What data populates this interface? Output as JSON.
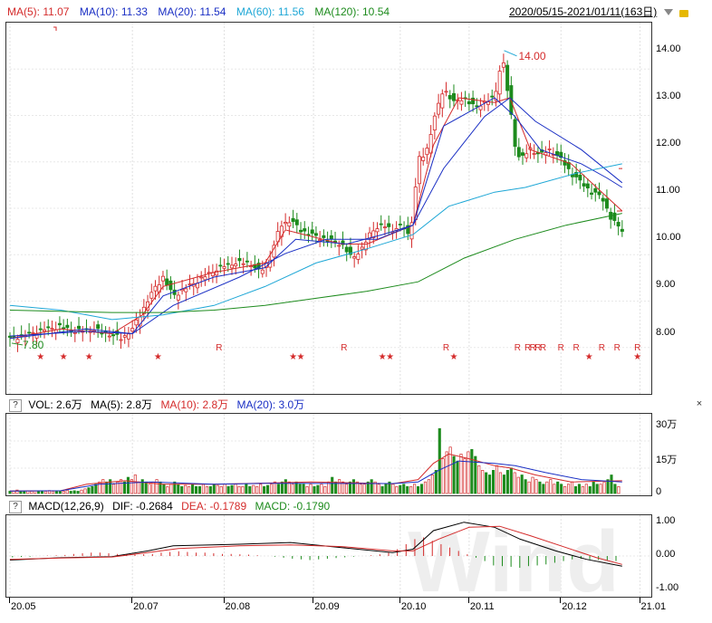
{
  "header": {
    "ma_labels": [
      {
        "text": "MA(5): 11.07",
        "color": "#d42b2b"
      },
      {
        "text": "MA(10): 11.33",
        "color": "#1a2fc4"
      },
      {
        "text": "MA(20): 11.54",
        "color": "#1a2fc4"
      },
      {
        "text": "MA(60): 11.56",
        "color": "#1ea7d6"
      },
      {
        "text": "MA(120): 10.54",
        "color": "#1d8b1d"
      }
    ],
    "date_range": "2020/05/15-2021/01/11(163日)"
  },
  "vol_header": {
    "q": "?",
    "labels": [
      {
        "text": "VOL: 2.6万",
        "color": "#000"
      },
      {
        "text": "MA(5): 2.8万",
        "color": "#000"
      },
      {
        "text": "MA(10): 2.8万",
        "color": "#d42b2b"
      },
      {
        "text": "MA(20): 3.0万",
        "color": "#1a2fc4"
      }
    ],
    "close": "×"
  },
  "macd_header": {
    "q": "?",
    "labels": [
      {
        "text": "MACD(12,26,9)",
        "color": "#000"
      },
      {
        "text": "DIF: -0.2684",
        "color": "#000"
      },
      {
        "text": "DEA: -0.1789",
        "color": "#d42b2b"
      },
      {
        "text": "MACD: -0.1790",
        "color": "#1d8b1d"
      }
    ]
  },
  "watermark": "Wind",
  "price_axis": {
    "ticks": [
      "14.00",
      "13.00",
      "12.00",
      "11.00",
      "10.00",
      "9.00",
      "8.00"
    ]
  },
  "vol_axis": {
    "ticks": [
      "30万",
      "15万",
      "0"
    ]
  },
  "macd_axis": {
    "ticks": [
      "1.00",
      "0.00",
      "-1.00"
    ]
  },
  "x_axis": {
    "ticks": [
      "20.05",
      "20.07",
      "20.08",
      "20.09",
      "20.10",
      "20.11",
      "20.12",
      "21.01"
    ]
  },
  "annotations": {
    "high": "14.00",
    "low": "7.80"
  },
  "markers": {
    "star": "★",
    "r": "R"
  },
  "chart_data": {
    "type": "candlestick",
    "price_ylim": [
      7.3,
      14.4
    ],
    "vol_ylim": [
      0,
      32
    ],
    "macd_ylim": [
      -1.1,
      1.1
    ],
    "close_path": [
      [
        0,
        7.9
      ],
      [
        8,
        8.0
      ],
      [
        14,
        8.1
      ],
      [
        20,
        8.15
      ],
      [
        26,
        8.05
      ],
      [
        32,
        8.1
      ],
      [
        38,
        8.0
      ],
      [
        44,
        7.9
      ],
      [
        48,
        8.1
      ],
      [
        52,
        8.5
      ],
      [
        56,
        8.9
      ],
      [
        60,
        9.2
      ],
      [
        64,
        8.8
      ],
      [
        70,
        9.0
      ],
      [
        76,
        9.2
      ],
      [
        82,
        9.4
      ],
      [
        88,
        9.5
      ],
      [
        94,
        9.5
      ],
      [
        98,
        9.3
      ],
      [
        102,
        9.6
      ],
      [
        106,
        10.3
      ],
      [
        110,
        10.4
      ],
      [
        114,
        10.2
      ],
      [
        118,
        10.1
      ],
      [
        124,
        10.0
      ],
      [
        130,
        9.9
      ],
      [
        134,
        9.6
      ],
      [
        138,
        9.8
      ],
      [
        142,
        10.2
      ],
      [
        146,
        10.3
      ],
      [
        150,
        10.2
      ],
      [
        154,
        10.3
      ],
      [
        156,
        10.1
      ],
      [
        158,
        10.5
      ],
      [
        160,
        11.7
      ],
      [
        163,
        11.8
      ],
      [
        166,
        12.5
      ],
      [
        170,
        13.2
      ],
      [
        174,
        12.9
      ],
      [
        178,
        13.0
      ],
      [
        182,
        12.8
      ],
      [
        186,
        12.9
      ],
      [
        190,
        13.0
      ],
      [
        193,
        13.9
      ],
      [
        196,
        12.8
      ],
      [
        198,
        12.0
      ],
      [
        200,
        11.7
      ],
      [
        204,
        11.9
      ],
      [
        208,
        11.8
      ],
      [
        212,
        11.9
      ],
      [
        216,
        11.7
      ],
      [
        220,
        11.4
      ],
      [
        224,
        11.2
      ],
      [
        228,
        11.0
      ],
      [
        232,
        10.9
      ],
      [
        236,
        10.4
      ],
      [
        240,
        10.2
      ]
    ],
    "ma_series": [
      {
        "label": "MA(5)",
        "color": "#d42b2b",
        "points": [
          [
            0,
            7.9
          ],
          [
            20,
            8.1
          ],
          [
            40,
            8.0
          ],
          [
            52,
            8.4
          ],
          [
            60,
            9.0
          ],
          [
            80,
            9.3
          ],
          [
            100,
            9.5
          ],
          [
            108,
            10.2
          ],
          [
            130,
            9.9
          ],
          [
            140,
            9.9
          ],
          [
            158,
            10.3
          ],
          [
            166,
            12.0
          ],
          [
            176,
            13.0
          ],
          [
            190,
            12.9
          ],
          [
            196,
            13.0
          ],
          [
            204,
            11.9
          ],
          [
            220,
            11.6
          ],
          [
            232,
            11.0
          ],
          [
            240,
            10.6
          ]
        ]
      },
      {
        "label": "MA(10)",
        "color": "#1a2fc4",
        "points": [
          [
            0,
            7.9
          ],
          [
            30,
            8.1
          ],
          [
            48,
            8.0
          ],
          [
            60,
            8.8
          ],
          [
            80,
            9.2
          ],
          [
            100,
            9.4
          ],
          [
            112,
            10.0
          ],
          [
            132,
            9.9
          ],
          [
            146,
            10.1
          ],
          [
            158,
            10.3
          ],
          [
            170,
            12.4
          ],
          [
            190,
            13.0
          ],
          [
            198,
            12.6
          ],
          [
            208,
            11.9
          ],
          [
            224,
            11.6
          ],
          [
            234,
            11.3
          ],
          [
            240,
            11.1
          ]
        ]
      },
      {
        "label": "MA(20)",
        "color": "#1a2fc4",
        "points": [
          [
            0,
            7.95
          ],
          [
            30,
            8.05
          ],
          [
            48,
            8.0
          ],
          [
            64,
            8.6
          ],
          [
            90,
            9.2
          ],
          [
            108,
            9.7
          ],
          [
            124,
            10.0
          ],
          [
            144,
            10.0
          ],
          [
            158,
            10.3
          ],
          [
            170,
            11.5
          ],
          [
            186,
            12.6
          ],
          [
            196,
            13.0
          ],
          [
            206,
            12.5
          ],
          [
            224,
            11.9
          ],
          [
            240,
            11.2
          ]
        ]
      },
      {
        "label": "MA(60)",
        "color": "#1ea7d6",
        "points": [
          [
            0,
            8.6
          ],
          [
            20,
            8.5
          ],
          [
            40,
            8.3
          ],
          [
            60,
            8.4
          ],
          [
            80,
            8.6
          ],
          [
            100,
            9.0
          ],
          [
            120,
            9.5
          ],
          [
            140,
            9.8
          ],
          [
            158,
            10.1
          ],
          [
            172,
            10.7
          ],
          [
            190,
            11.0
          ],
          [
            202,
            11.1
          ],
          [
            222,
            11.4
          ],
          [
            240,
            11.6
          ]
        ]
      },
      {
        "label": "MA(120)",
        "color": "#1d8b1d",
        "points": [
          [
            0,
            8.5
          ],
          [
            40,
            8.45
          ],
          [
            60,
            8.45
          ],
          [
            80,
            8.5
          ],
          [
            100,
            8.6
          ],
          [
            120,
            8.75
          ],
          [
            140,
            8.9
          ],
          [
            160,
            9.1
          ],
          [
            178,
            9.6
          ],
          [
            198,
            10.0
          ],
          [
            218,
            10.3
          ],
          [
            240,
            10.55
          ]
        ]
      }
    ],
    "volume": [
      1,
      1,
      1.5,
      1,
      1,
      1.2,
      1,
      1.1,
      1,
      1.2,
      1,
      1.3,
      1,
      1,
      1.2,
      1,
      1.4,
      1,
      1.2,
      1,
      1.5,
      2,
      2.5,
      3,
      4,
      5,
      6,
      5,
      6,
      4,
      5,
      6,
      5,
      7,
      6,
      8,
      5,
      6,
      5,
      4,
      5,
      6,
      5,
      4,
      3,
      4,
      5,
      4,
      3,
      3.5,
      3,
      4,
      3,
      3,
      4,
      3,
      3,
      4,
      3.5,
      3,
      4,
      3,
      3.5,
      4,
      3,
      3,
      4,
      3,
      3.5,
      3,
      4,
      3,
      3.5,
      4,
      5,
      4,
      5,
      6,
      5,
      4,
      5,
      4,
      4,
      3,
      4,
      3,
      3.5,
      4,
      3,
      5,
      7,
      5,
      6,
      5,
      4,
      5,
      6,
      5,
      4,
      4,
      5,
      6,
      5,
      4,
      3,
      4,
      5,
      4,
      3,
      3.5,
      4,
      3,
      3,
      4,
      3,
      4,
      5,
      6,
      8,
      10,
      28,
      15,
      18,
      20,
      16,
      14,
      17,
      15,
      18,
      19,
      16,
      12,
      10,
      9,
      8,
      10,
      12,
      9,
      8,
      10,
      11,
      9,
      7,
      8,
      6,
      5,
      7,
      6,
      5,
      4,
      5,
      6,
      4,
      5,
      4,
      3,
      4,
      5,
      3,
      4,
      3,
      4,
      3,
      5,
      4,
      4,
      5,
      6,
      8,
      4,
      3
    ],
    "vol_ma_series": [
      {
        "color": "#d42b2b",
        "points": [
          [
            0,
            1.1
          ],
          [
            20,
            1.2
          ],
          [
            30,
            4
          ],
          [
            45,
            5.5
          ],
          [
            60,
            4
          ],
          [
            80,
            4
          ],
          [
            100,
            4.5
          ],
          [
            118,
            5
          ],
          [
            150,
            4.2
          ],
          [
            160,
            6
          ],
          [
            166,
            13
          ],
          [
            172,
            17
          ],
          [
            180,
            15
          ],
          [
            190,
            12
          ],
          [
            196,
            11
          ],
          [
            206,
            8
          ],
          [
            220,
            5
          ],
          [
            240,
            5.5
          ]
        ]
      },
      {
        "color": "#1a2fc4",
        "points": [
          [
            0,
            1.1
          ],
          [
            20,
            1.2
          ],
          [
            35,
            4
          ],
          [
            55,
            5
          ],
          [
            80,
            4
          ],
          [
            100,
            4.4
          ],
          [
            150,
            4.3
          ],
          [
            160,
            5
          ],
          [
            168,
            10
          ],
          [
            176,
            14
          ],
          [
            190,
            13
          ],
          [
            198,
            12
          ],
          [
            210,
            9
          ],
          [
            224,
            6
          ],
          [
            240,
            5
          ]
        ]
      }
    ],
    "macd_dif": [
      [
        0,
        -0.12
      ],
      [
        20,
        -0.05
      ],
      [
        40,
        -0.02
      ],
      [
        54,
        0.15
      ],
      [
        64,
        0.3
      ],
      [
        90,
        0.35
      ],
      [
        110,
        0.4
      ],
      [
        130,
        0.25
      ],
      [
        150,
        0.1
      ],
      [
        158,
        0.2
      ],
      [
        166,
        0.75
      ],
      [
        178,
        1.0
      ],
      [
        190,
        0.85
      ],
      [
        200,
        0.5
      ],
      [
        214,
        0.15
      ],
      [
        226,
        -0.1
      ],
      [
        240,
        -0.3
      ]
    ],
    "macd_dea": [
      [
        0,
        -0.1
      ],
      [
        20,
        -0.06
      ],
      [
        40,
        -0.03
      ],
      [
        54,
        0.1
      ],
      [
        66,
        0.22
      ],
      [
        90,
        0.3
      ],
      [
        110,
        0.33
      ],
      [
        130,
        0.28
      ],
      [
        150,
        0.15
      ],
      [
        158,
        0.15
      ],
      [
        168,
        0.5
      ],
      [
        180,
        0.85
      ],
      [
        192,
        0.88
      ],
      [
        204,
        0.6
      ],
      [
        218,
        0.25
      ],
      [
        230,
        -0.05
      ],
      [
        240,
        -0.25
      ]
    ],
    "macd_hist": [
      -0.04,
      -0.03,
      -0.02,
      0,
      0.01,
      0.02,
      0.03,
      0.06,
      0.08,
      0.1,
      0.1,
      0.08,
      0.06,
      0.05,
      0.05,
      0.05,
      0.06,
      0.1,
      0.12,
      0.14,
      0.12,
      0.1,
      0.1,
      0.08,
      0.06,
      0.06,
      0.05,
      0.04,
      0.02,
      0,
      -0.02,
      -0.05,
      -0.08,
      -0.1,
      -0.12,
      -0.1,
      -0.08,
      -0.06,
      -0.04,
      -0.02,
      0,
      0.02,
      0.05,
      0.1,
      0.2,
      0.35,
      0.5,
      0.55,
      0.45,
      0.35,
      0.25,
      0.15,
      0.05,
      -0.05,
      -0.15,
      -0.28,
      -0.3,
      -0.32,
      -0.35,
      -0.3,
      -0.28,
      -0.25,
      -0.2,
      -0.15,
      -0.1,
      -0.08,
      -0.1,
      -0.12,
      -0.14,
      -0.15
    ],
    "event_markers": [
      {
        "x": 12,
        "type": "star"
      },
      {
        "x": 21,
        "type": "star"
      },
      {
        "x": 31,
        "type": "star"
      },
      {
        "x": 58,
        "type": "star"
      },
      {
        "x": 82,
        "type": "r"
      },
      {
        "x": 111,
        "type": "star"
      },
      {
        "x": 114,
        "type": "star"
      },
      {
        "x": 131,
        "type": "r"
      },
      {
        "x": 146,
        "type": "star"
      },
      {
        "x": 149,
        "type": "star"
      },
      {
        "x": 171,
        "type": "r"
      },
      {
        "x": 174,
        "type": "star"
      },
      {
        "x": 199,
        "type": "r"
      },
      {
        "x": 203,
        "type": "r"
      },
      {
        "x": 205,
        "type": "r"
      },
      {
        "x": 207,
        "type": "r"
      },
      {
        "x": 209,
        "type": "r"
      },
      {
        "x": 216,
        "type": "r"
      },
      {
        "x": 222,
        "type": "r"
      },
      {
        "x": 227,
        "type": "star"
      },
      {
        "x": 232,
        "type": "r"
      },
      {
        "x": 238,
        "type": "r"
      },
      {
        "x": 246,
        "type": "r"
      },
      {
        "x": 246,
        "type": "star"
      }
    ],
    "x_ticks_pos": [
      0,
      48,
      84,
      119,
      153,
      180,
      216,
      247
    ]
  }
}
